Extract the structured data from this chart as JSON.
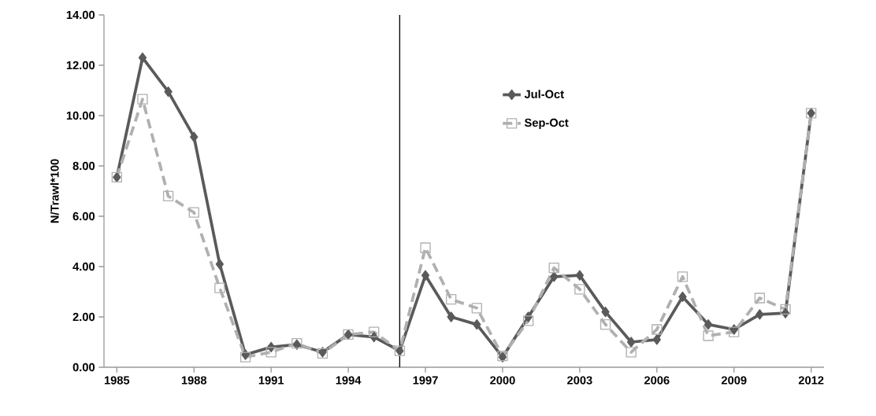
{
  "chart_data": {
    "type": "line",
    "ylabel": "N/Trawl*100",
    "x": [
      1985,
      1986,
      1987,
      1988,
      1989,
      1990,
      1991,
      1992,
      1993,
      1994,
      1995,
      1996,
      1997,
      1998,
      1999,
      2000,
      2001,
      2002,
      2003,
      2004,
      2005,
      2006,
      2007,
      2008,
      2009,
      2010,
      2011,
      2012
    ],
    "series": [
      {
        "name": "Jul-Oct",
        "color": "#5a5a5a",
        "marker": "diamond",
        "line_style": "solid",
        "values": [
          7.55,
          12.3,
          10.95,
          9.15,
          4.1,
          0.5,
          0.8,
          0.9,
          0.6,
          1.3,
          1.2,
          0.65,
          3.65,
          2.0,
          1.7,
          0.4,
          2.0,
          3.6,
          3.65,
          2.2,
          1.0,
          1.1,
          2.8,
          1.7,
          1.5,
          2.1,
          2.15,
          10.1
        ]
      },
      {
        "name": "Sep-Oct",
        "color": "#b0b0b0",
        "marker": "square",
        "line_style": "dashed",
        "values": [
          7.55,
          10.65,
          6.8,
          6.15,
          3.15,
          0.4,
          0.6,
          0.95,
          0.55,
          1.3,
          1.4,
          0.65,
          4.75,
          2.7,
          2.35,
          0.45,
          1.85,
          3.95,
          3.1,
          1.7,
          0.6,
          1.5,
          3.6,
          1.25,
          1.4,
          2.75,
          2.3,
          10.1
        ]
      }
    ],
    "xlim": [
      1984.5,
      2012.5
    ],
    "xticks": [
      1985,
      1988,
      1991,
      1994,
      1997,
      2000,
      2003,
      2006,
      2009,
      2012
    ],
    "ylim": [
      0,
      14
    ],
    "yticks": [
      {
        "value": 0,
        "label": "0.00"
      },
      {
        "value": 2,
        "label": "2.00"
      },
      {
        "value": 4,
        "label": "4.00"
      },
      {
        "value": 6,
        "label": "6.00"
      },
      {
        "value": 8,
        "label": "8.00"
      },
      {
        "value": 10,
        "label": "10.00"
      },
      {
        "value": 12,
        "label": "12.00"
      },
      {
        "value": 14,
        "label": "14.00"
      }
    ],
    "ref_lines": [
      {
        "axis": "x",
        "value": 1996,
        "color": "#000000"
      }
    ],
    "grid": false,
    "legend": "top"
  }
}
